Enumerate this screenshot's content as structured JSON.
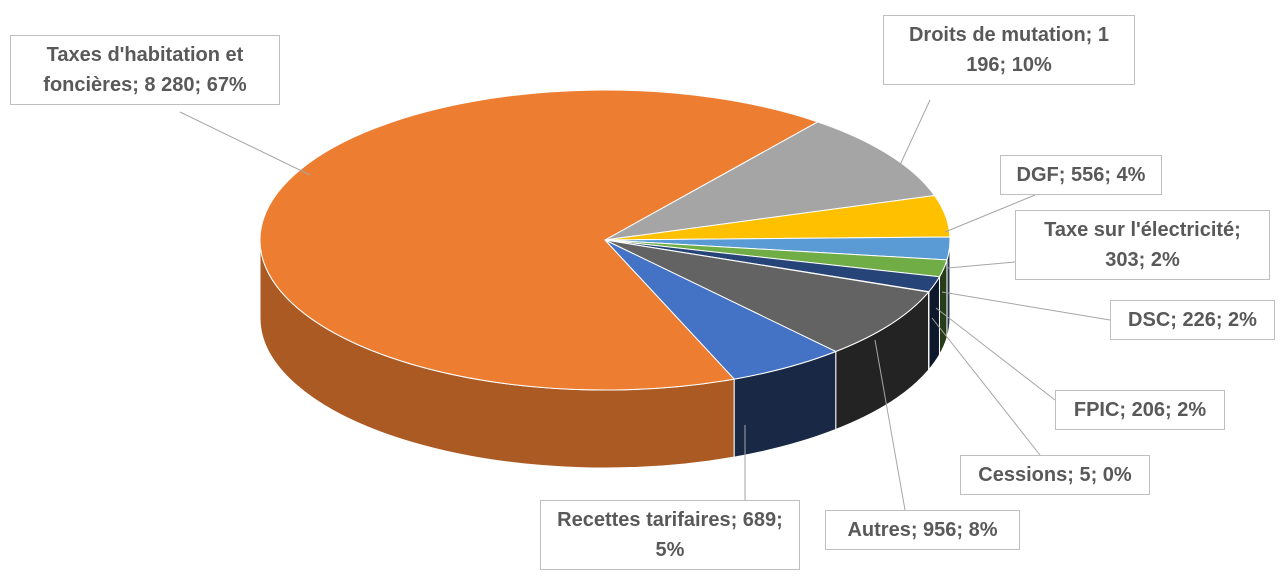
{
  "chart_data": {
    "type": "pie",
    "values": [
      8280,
      1196,
      556,
      303,
      226,
      206,
      5,
      956,
      689
    ],
    "value_labels": [
      "Taxes d'habitation et foncières; 8 280; 67%",
      "Droits de mutation; 1 196; 10%",
      "DGF; 556; 4%",
      "Taxe sur l'électricité; 303; 2%",
      "DSC; 226; 2%",
      "FPIC; 206; 2%",
      "Cessions; 5; 0%",
      "Autres; 956; 8%",
      "Recettes tarifaires; 689; 5%"
    ],
    "colors": [
      "#ED7D31",
      "#A5A5A5",
      "#FFC000",
      "#5B9BD5",
      "#70AD47",
      "#264478",
      "#9E480E",
      "#636363",
      "#4472C4"
    ]
  }
}
